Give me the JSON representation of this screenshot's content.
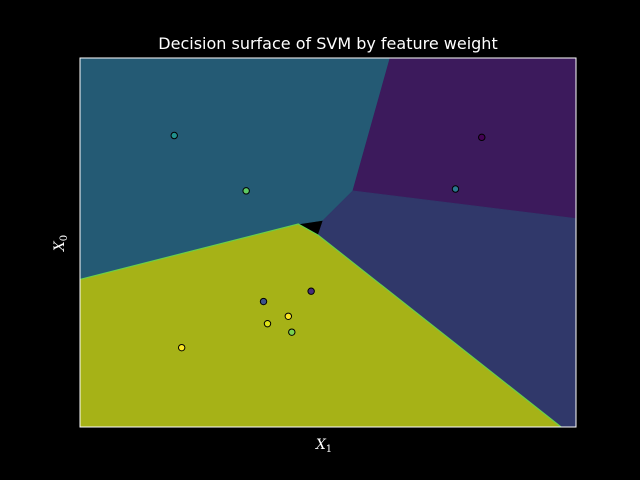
{
  "chart_data": {
    "type": "scatter",
    "title": "Decision surface of SVM by feature weight",
    "xlabel": {
      "base": "X",
      "sub": "1"
    },
    "ylabel": {
      "base": "X",
      "sub": "0"
    },
    "xlim": [
      0,
      1
    ],
    "ylim": [
      0,
      1
    ],
    "ticks_visible": false,
    "grid": false,
    "region_colors": {
      "class_0": "#3c1a5c",
      "class_1": "#30386a",
      "class_2": "#245a74",
      "class_3": "#a6b217"
    },
    "boundary_color": "#6ad048",
    "regions": [
      {
        "class": "class_3",
        "polygon": [
          [
            0,
            0.4
          ],
          [
            0.44,
            0.55
          ],
          [
            0.48,
            0.52
          ],
          [
            0.97,
            0
          ],
          [
            0,
            0
          ]
        ]
      },
      {
        "class": "class_2",
        "polygon": [
          [
            0,
            1
          ],
          [
            0.625,
            1
          ],
          [
            0.55,
            0.64
          ],
          [
            0.49,
            0.56
          ],
          [
            0.44,
            0.55
          ],
          [
            0,
            0.4
          ]
        ]
      },
      {
        "class": "class_0",
        "polygon": [
          [
            0.625,
            1
          ],
          [
            1,
            1
          ],
          [
            1,
            0.565
          ],
          [
            0.55,
            0.64
          ]
        ]
      },
      {
        "class": "class_1",
        "polygon": [
          [
            0.55,
            0.64
          ],
          [
            1,
            0.565
          ],
          [
            1,
            0
          ],
          [
            0.97,
            0
          ],
          [
            0.48,
            0.52
          ],
          [
            0.49,
            0.56
          ]
        ]
      }
    ],
    "points": [
      {
        "x": 0.19,
        "y": 0.79,
        "color": "#21908c"
      },
      {
        "x": 0.335,
        "y": 0.64,
        "color": "#5ec962"
      },
      {
        "x": 0.81,
        "y": 0.785,
        "color": "#440154"
      },
      {
        "x": 0.757,
        "y": 0.645,
        "color": "#2a788e"
      },
      {
        "x": 0.37,
        "y": 0.34,
        "color": "#3b528b"
      },
      {
        "x": 0.466,
        "y": 0.368,
        "color": "#472d7b"
      },
      {
        "x": 0.42,
        "y": 0.3,
        "color": "#fde725"
      },
      {
        "x": 0.378,
        "y": 0.28,
        "color": "#dde318"
      },
      {
        "x": 0.427,
        "y": 0.257,
        "color": "#7ad151"
      },
      {
        "x": 0.205,
        "y": 0.215,
        "color": "#fde725"
      }
    ]
  }
}
